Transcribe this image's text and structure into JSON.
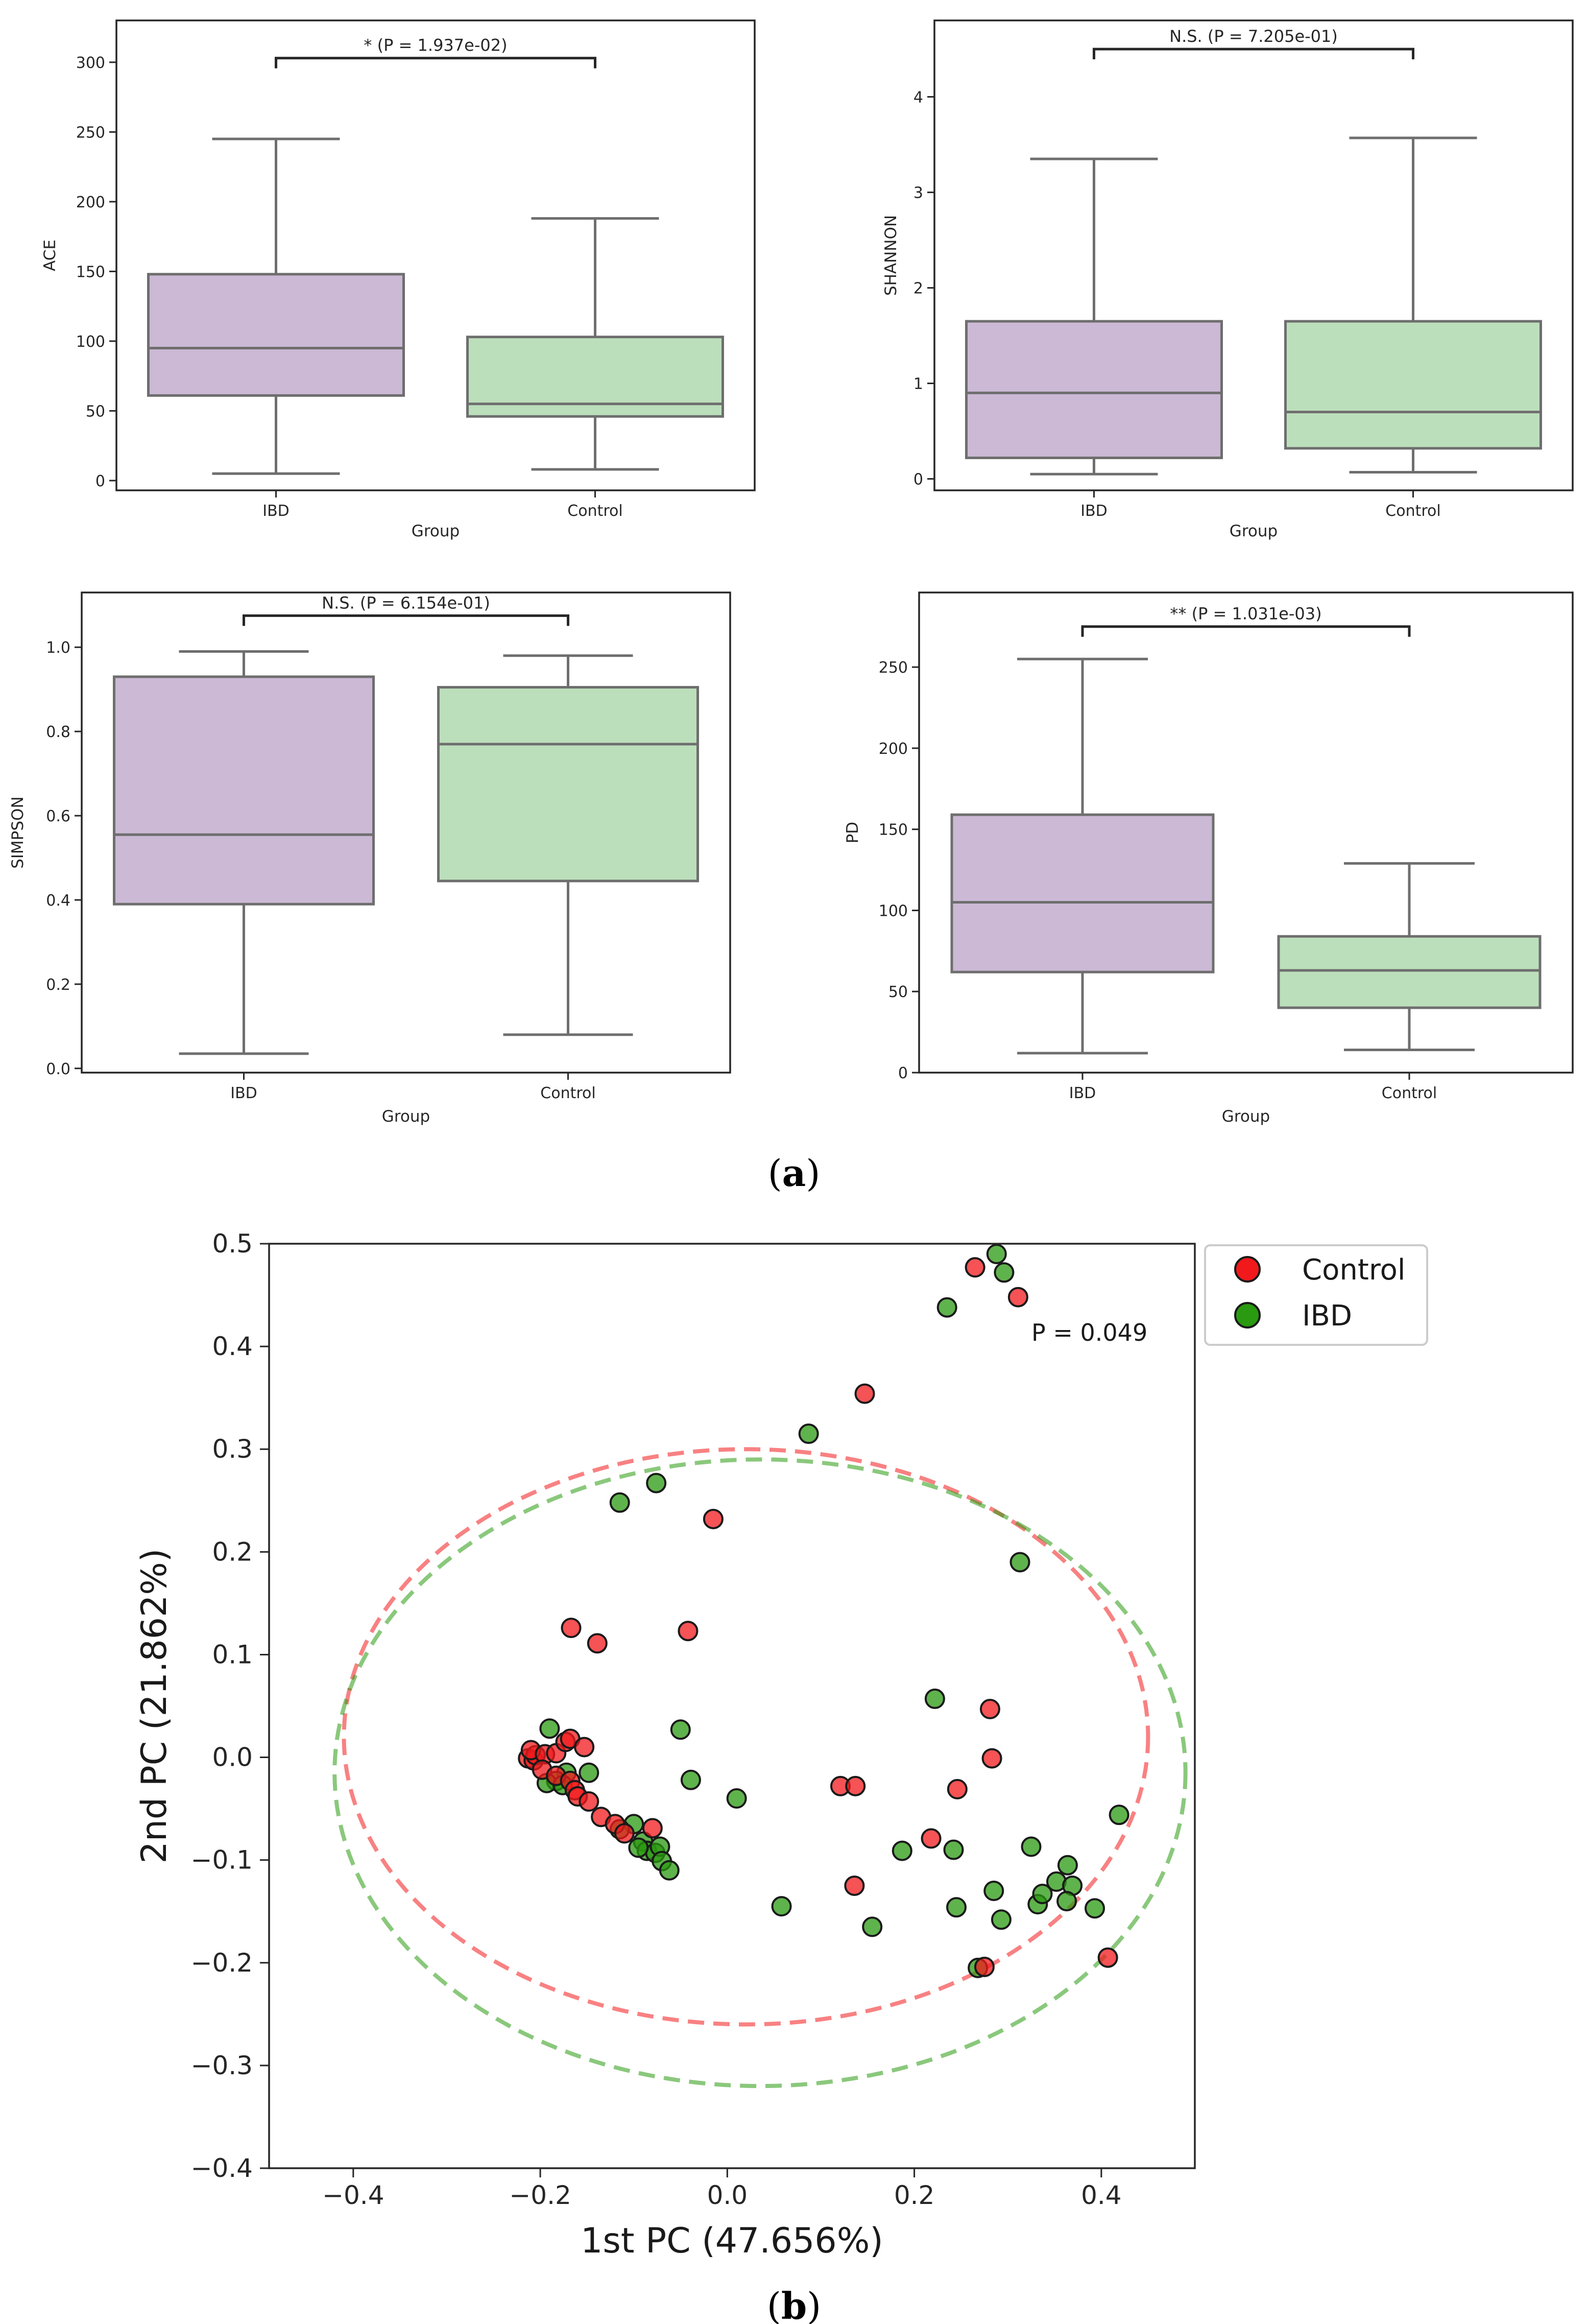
{
  "panel_labels": {
    "a": "a",
    "b": "b"
  },
  "chart_data": [
    {
      "type": "box",
      "panel": "a",
      "title": "",
      "xlabel": "Group",
      "ylabel": "ACE",
      "categories": [
        "IBD",
        "Control"
      ],
      "colors": [
        "#cbb9d5",
        "#bcdfbb"
      ],
      "boxes": [
        {
          "group": "IBD",
          "min": 5,
          "q1": 61,
          "median": 95,
          "q3": 148,
          "max": 245
        },
        {
          "group": "Control",
          "min": 8,
          "q1": 46,
          "median": 55,
          "q3": 103,
          "max": 188
        }
      ],
      "yticks": [
        0,
        50,
        100,
        150,
        200,
        250,
        300
      ],
      "ylim": [
        -7,
        330
      ],
      "annotation": "* (P = 1.937e-02)",
      "bracket_y": 303
    },
    {
      "type": "box",
      "panel": "a",
      "title": "",
      "xlabel": "Group",
      "ylabel": "SHANNON",
      "categories": [
        "IBD",
        "Control"
      ],
      "colors": [
        "#cbb9d5",
        "#bcdfbb"
      ],
      "boxes": [
        {
          "group": "IBD",
          "min": 0.05,
          "q1": 0.22,
          "median": 0.9,
          "q3": 1.65,
          "max": 3.35
        },
        {
          "group": "Control",
          "min": 0.07,
          "q1": 0.32,
          "median": 0.7,
          "q3": 1.65,
          "max": 3.57
        }
      ],
      "yticks": [
        0,
        1,
        2,
        3,
        4
      ],
      "ylim": [
        -0.12,
        4.8
      ],
      "annotation": "N.S. (P = 7.205e-01)",
      "bracket_y": 4.5
    },
    {
      "type": "box",
      "panel": "a",
      "title": "",
      "xlabel": "Group",
      "ylabel": "SIMPSON",
      "categories": [
        "IBD",
        "Control"
      ],
      "colors": [
        "#cbb9d5",
        "#bcdfbb"
      ],
      "boxes": [
        {
          "group": "IBD",
          "min": 0.035,
          "q1": 0.39,
          "median": 0.555,
          "q3": 0.93,
          "max": 0.99
        },
        {
          "group": "Control",
          "min": 0.08,
          "q1": 0.445,
          "median": 0.77,
          "q3": 0.905,
          "max": 0.98
        }
      ],
      "yticks": [
        0.0,
        0.2,
        0.4,
        0.6,
        0.8,
        1.0
      ],
      "ytick_labels": [
        "0.0",
        "0.2",
        "0.4",
        "0.6",
        "0.8",
        "1.0"
      ],
      "ylim": [
        -0.01,
        1.13
      ],
      "annotation": "N.S. (P = 6.154e-01)",
      "bracket_y": 1.075
    },
    {
      "type": "box",
      "panel": "a",
      "title": "",
      "xlabel": "Group",
      "ylabel": "PD",
      "categories": [
        "IBD",
        "Control"
      ],
      "colors": [
        "#cbb9d5",
        "#bcdfbb"
      ],
      "boxes": [
        {
          "group": "IBD",
          "min": 12,
          "q1": 62,
          "median": 105,
          "q3": 159,
          "max": 255
        },
        {
          "group": "Control",
          "min": 14,
          "q1": 40,
          "median": 63,
          "q3": 84,
          "max": 129
        }
      ],
      "yticks": [
        0,
        50,
        100,
        150,
        200,
        250
      ],
      "ylim": [
        0,
        296
      ],
      "annotation": "** (P = 1.031e-03)",
      "bracket_y": 275
    },
    {
      "type": "scatter",
      "panel": "b",
      "title": "",
      "xlabel": "1st PC (47.656%)",
      "ylabel": "2nd PC (21.862%)",
      "xlim": [
        -0.49,
        0.5
      ],
      "ylim": [
        -0.4,
        0.5
      ],
      "xticks": [
        -0.4,
        -0.2,
        0.0,
        0.2,
        0.4
      ],
      "xtick_labels": [
        "−0.4",
        "−0.2",
        "0.0",
        "0.2",
        "0.4"
      ],
      "yticks": [
        -0.4,
        -0.3,
        -0.2,
        -0.1,
        0.0,
        0.1,
        0.2,
        0.3,
        0.4,
        0.5
      ],
      "ytick_labels": [
        "−0.4",
        "−0.3",
        "−0.2",
        "−0.1",
        "0.0",
        "0.1",
        "0.2",
        "0.3",
        "0.4",
        "0.5"
      ],
      "annotation": "P = 0.049",
      "legend": {
        "position": "top-right outside",
        "entries": [
          "Control",
          "IBD"
        ]
      },
      "series": [
        {
          "name": "Control",
          "color": "#f2191c",
          "ellipse": {
            "cx": 0.02,
            "cy": 0.02,
            "rx": 0.43,
            "ry": 0.28
          },
          "points": [
            [
              0.265,
              0.477
            ],
            [
              0.311,
              0.448
            ],
            [
              0.147,
              0.354
            ],
            [
              -0.015,
              0.232
            ],
            [
              -0.167,
              0.126
            ],
            [
              -0.139,
              0.111
            ],
            [
              -0.042,
              0.123
            ],
            [
              0.281,
              0.047
            ],
            [
              0.283,
              -0.001
            ],
            [
              0.246,
              -0.031
            ],
            [
              0.121,
              -0.028
            ],
            [
              0.137,
              -0.028
            ],
            [
              0.218,
              -0.079
            ],
            [
              0.136,
              -0.125
            ],
            [
              0.275,
              -0.204
            ],
            [
              0.407,
              -0.195
            ],
            [
              -0.213,
              -0.001
            ],
            [
              -0.207,
              -0.003
            ],
            [
              -0.205,
              0.002
            ],
            [
              -0.21,
              0.007
            ],
            [
              -0.195,
              0.003
            ],
            [
              -0.183,
              0.004
            ],
            [
              -0.173,
              0.015
            ],
            [
              -0.168,
              0.018
            ],
            [
              -0.153,
              0.01
            ],
            [
              -0.198,
              -0.012
            ],
            [
              -0.183,
              -0.018
            ],
            [
              -0.168,
              -0.023
            ],
            [
              -0.163,
              -0.032
            ],
            [
              -0.16,
              -0.038
            ],
            [
              -0.148,
              -0.043
            ],
            [
              -0.135,
              -0.058
            ],
            [
              -0.12,
              -0.065
            ],
            [
              -0.11,
              -0.074
            ],
            [
              -0.08,
              -0.069
            ]
          ]
        },
        {
          "name": "IBD",
          "color": "#2a9a10",
          "ellipse": {
            "cx": 0.035,
            "cy": -0.015,
            "rx": 0.455,
            "ry": 0.305
          },
          "points": [
            [
              0.288,
              0.49
            ],
            [
              0.296,
              0.472
            ],
            [
              0.235,
              0.438
            ],
            [
              0.087,
              0.315
            ],
            [
              -0.076,
              0.267
            ],
            [
              -0.115,
              0.248
            ],
            [
              0.313,
              0.19
            ],
            [
              -0.05,
              0.027
            ],
            [
              -0.039,
              -0.022
            ],
            [
              0.01,
              -0.04
            ],
            [
              0.222,
              0.057
            ],
            [
              0.242,
              -0.09
            ],
            [
              0.187,
              -0.091
            ],
            [
              0.325,
              -0.087
            ],
            [
              0.058,
              -0.145
            ],
            [
              0.155,
              -0.165
            ],
            [
              0.245,
              -0.146
            ],
            [
              0.285,
              -0.13
            ],
            [
              0.293,
              -0.158
            ],
            [
              0.332,
              -0.143
            ],
            [
              0.337,
              -0.133
            ],
            [
              0.352,
              -0.121
            ],
            [
              0.364,
              -0.105
            ],
            [
              0.369,
              -0.125
            ],
            [
              0.363,
              -0.14
            ],
            [
              0.393,
              -0.147
            ],
            [
              0.419,
              -0.056
            ],
            [
              0.268,
              -0.205
            ],
            [
              -0.19,
              0.028
            ],
            [
              -0.172,
              -0.015
            ],
            [
              -0.183,
              -0.023
            ],
            [
              -0.193,
              -0.025
            ],
            [
              -0.148,
              -0.015
            ],
            [
              -0.176,
              -0.027
            ],
            [
              -0.1,
              -0.065
            ],
            [
              -0.115,
              -0.07
            ],
            [
              -0.09,
              -0.082
            ],
            [
              -0.086,
              -0.091
            ],
            [
              -0.077,
              -0.093
            ],
            [
              -0.072,
              -0.087
            ],
            [
              -0.07,
              -0.101
            ],
            [
              -0.062,
              -0.11
            ],
            [
              -0.095,
              -0.088
            ]
          ]
        }
      ]
    }
  ]
}
